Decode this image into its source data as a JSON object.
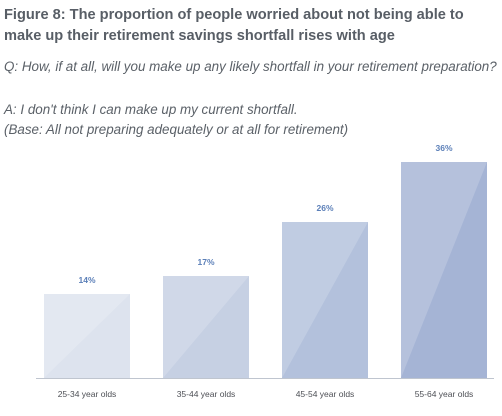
{
  "figure": {
    "title": "Figure 8: The proportion of people worried about not being able to make up their retirement savings shortfall rises with age",
    "question": "Q: How, if at all, will you make up any likely shortfall in your retirement preparation?",
    "answer": "A: I don't think I can make up my current shortfall.",
    "base": "(Base: All not preparing adequately or at all for retirement)"
  },
  "colors": {
    "bars": [
      "#dde3ee",
      "#c6d0e3",
      "#b3c1dc",
      "#a5b4d5"
    ],
    "value_label": "#5b7fb8",
    "category_label": "#4d4f55",
    "axis": "#bfc5cf"
  },
  "chart_data": {
    "type": "bar",
    "categories": [
      "25-34 year olds",
      "35-44 year olds",
      "45-54 year olds",
      "55-64 year olds"
    ],
    "values": [
      14,
      17,
      26,
      36
    ],
    "value_labels": [
      "14%",
      "17%",
      "26%",
      "36%"
    ],
    "ylim": [
      0,
      36
    ],
    "grid": false,
    "legend": "none",
    "title": "",
    "xlabel": "",
    "ylabel": ""
  }
}
